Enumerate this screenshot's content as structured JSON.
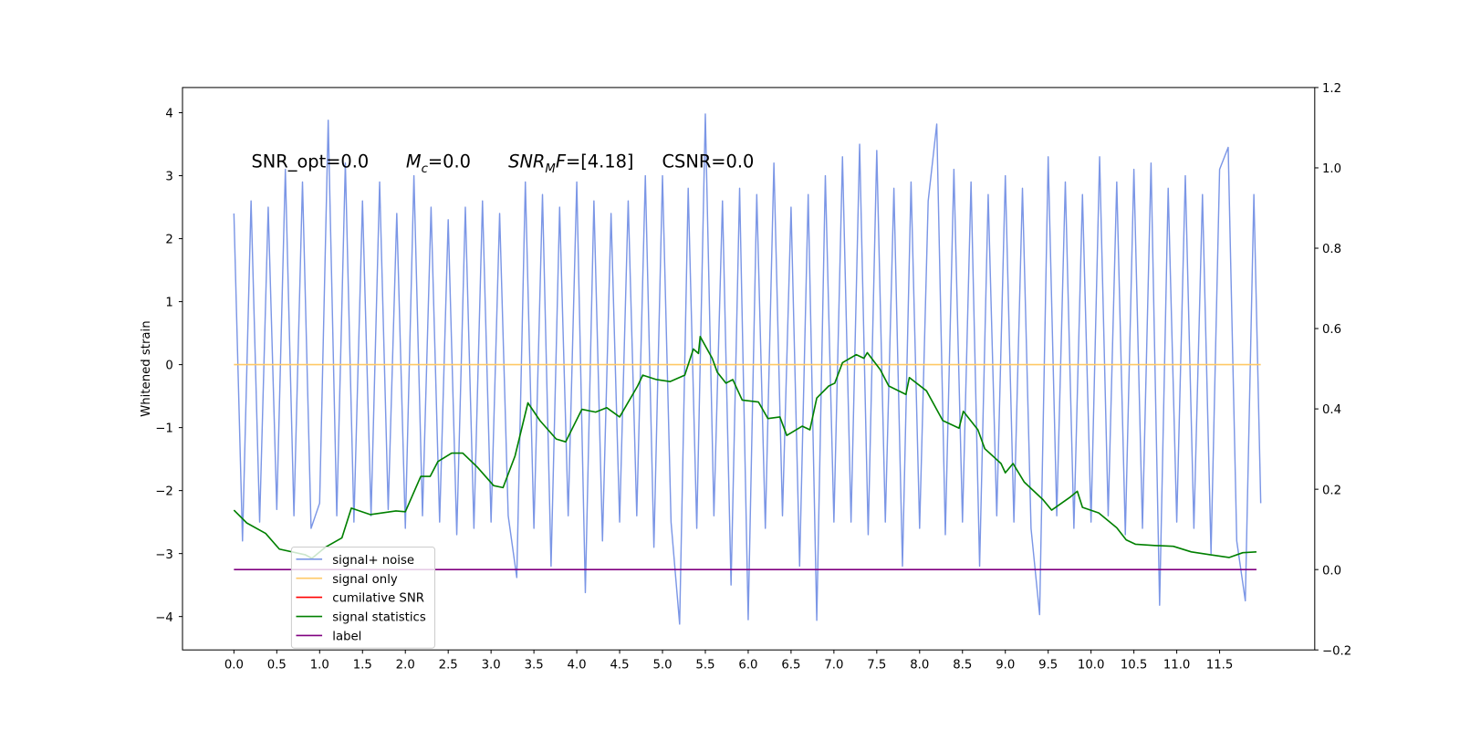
{
  "chart_data": {
    "type": "line",
    "y_label": "Whitened strain",
    "annotations": [
      [
        "SNR_opt=0.0"
      ],
      [
        "M",
        "c",
        "=0.0"
      ],
      [
        "SNR",
        "M",
        "F",
        "=[4.18]"
      ],
      [
        "CSNR=0.0"
      ]
    ],
    "xlim": [
      -0.6,
      12.61
    ],
    "ylim": [
      -4.53,
      4.4
    ],
    "y2lim": [
      -0.2,
      1.2
    ],
    "xticks": [
      {
        "value": 0,
        "label": "0.0"
      },
      {
        "value": 0.5,
        "label": "0.5"
      },
      {
        "value": 1,
        "label": "1.0"
      },
      {
        "value": 1.5,
        "label": "1.5"
      },
      {
        "value": 2,
        "label": "2.0"
      },
      {
        "value": 2.5,
        "label": "2.5"
      },
      {
        "value": 3,
        "label": "3.0"
      },
      {
        "value": 3.5,
        "label": "3.5"
      },
      {
        "value": 4,
        "label": "4.0"
      },
      {
        "value": 4.5,
        "label": "4.5"
      },
      {
        "value": 5,
        "label": "5.0"
      },
      {
        "value": 5.5,
        "label": "5.5"
      },
      {
        "value": 6,
        "label": "6.0"
      },
      {
        "value": 6.5,
        "label": "6.5"
      },
      {
        "value": 7,
        "label": "7.0"
      },
      {
        "value": 7.5,
        "label": "7.5"
      },
      {
        "value": 8,
        "label": "8.0"
      },
      {
        "value": 8.5,
        "label": "8.5"
      },
      {
        "value": 9,
        "label": "9.0"
      },
      {
        "value": 9.5,
        "label": "9.5"
      },
      {
        "value": 10,
        "label": "10.0"
      },
      {
        "value": 10.5,
        "label": "10.5"
      },
      {
        "value": 11,
        "label": "11.0"
      },
      {
        "value": 11.5,
        "label": "11.5"
      }
    ],
    "yticks": [
      {
        "value": -4,
        "label": "−4"
      },
      {
        "value": -3,
        "label": "−3"
      },
      {
        "value": -2,
        "label": "−2"
      },
      {
        "value": -1,
        "label": "−1"
      },
      0,
      1,
      2,
      3,
      4
    ],
    "y2ticks": [
      {
        "value": -0.2,
        "label": "−0.2"
      },
      {
        "value": 0,
        "label": "0.0"
      },
      {
        "value": 0.2,
        "label": "0.2"
      },
      {
        "value": 0.4,
        "label": "0.4"
      },
      {
        "value": 0.6,
        "label": "0.6"
      },
      {
        "value": 0.8,
        "label": "0.8"
      },
      {
        "value": 1,
        "label": "1.0"
      },
      {
        "value": 1.2,
        "label": "1.2"
      }
    ],
    "legend": "lower left",
    "series": [
      {
        "name": "signal+ noise",
        "color": "#7b96e6",
        "x": [
          0.0,
          0.1,
          0.2,
          0.3,
          0.4,
          0.5,
          0.6,
          0.7,
          0.8,
          0.9,
          1.0,
          1.1,
          1.2,
          1.3,
          1.4,
          1.5,
          1.6,
          1.7,
          1.8,
          1.9,
          2.0,
          2.1,
          2.2,
          2.3,
          2.4,
          2.5,
          2.6,
          2.7,
          2.8,
          2.9,
          3.0,
          3.1,
          3.2,
          3.3,
          3.4,
          3.5,
          3.6,
          3.7,
          3.8,
          3.9,
          4.0,
          4.1,
          4.2,
          4.3,
          4.4,
          4.5,
          4.6,
          4.7,
          4.8,
          4.9,
          5.0,
          5.1,
          5.2,
          5.3,
          5.4,
          5.5,
          5.6,
          5.7,
          5.8,
          5.9,
          6.0,
          6.1,
          6.2,
          6.3,
          6.4,
          6.5,
          6.6,
          6.7,
          6.8,
          6.9,
          7.0,
          7.1,
          7.2,
          7.3,
          7.4,
          7.5,
          7.6,
          7.7,
          7.8,
          7.9,
          8.0,
          8.1,
          8.2,
          8.3,
          8.4,
          8.5,
          8.6,
          8.7,
          8.8,
          8.9,
          9.0,
          9.1,
          9.2,
          9.3,
          9.4,
          9.5,
          9.6,
          9.7,
          9.8,
          9.9,
          10.0,
          10.1,
          10.2,
          10.3,
          10.4,
          10.5,
          10.6,
          10.7,
          10.8,
          10.9,
          11.0,
          11.1,
          11.2,
          11.3,
          11.4,
          11.5,
          11.6,
          11.7,
          11.8,
          11.9,
          11.98
        ],
        "values": [
          2.4,
          -2.8,
          2.6,
          -2.5,
          2.5,
          -2.3,
          3.1,
          -2.4,
          2.9,
          -2.6,
          -2.2,
          3.88,
          -2.4,
          3.2,
          -2.5,
          2.6,
          -2.4,
          2.9,
          -2.3,
          2.4,
          -2.6,
          3.0,
          -2.4,
          2.5,
          -2.5,
          2.3,
          -2.7,
          2.5,
          -2.6,
          2.6,
          -2.5,
          2.4,
          -2.4,
          -3.38,
          2.9,
          -2.6,
          2.7,
          -3.2,
          2.5,
          -2.4,
          2.9,
          -3.62,
          2.6,
          -2.8,
          2.4,
          -2.5,
          2.6,
          -2.4,
          3.0,
          -2.9,
          3.0,
          -2.5,
          -4.12,
          2.8,
          -2.6,
          3.98,
          -2.4,
          2.6,
          -3.5,
          2.8,
          -4.05,
          2.7,
          -2.6,
          3.2,
          -2.4,
          2.5,
          -3.2,
          2.7,
          -4.06,
          3.0,
          -2.5,
          3.3,
          -2.5,
          3.5,
          -2.7,
          3.4,
          -2.5,
          2.8,
          -3.2,
          2.9,
          -2.6,
          2.6,
          3.82,
          -2.7,
          3.1,
          -2.5,
          2.9,
          -3.2,
          2.7,
          -2.4,
          3.0,
          -2.5,
          2.8,
          -2.6,
          -3.97,
          3.3,
          -2.4,
          2.9,
          -2.6,
          2.7,
          -2.5,
          3.3,
          -2.4,
          2.9,
          -2.7,
          3.1,
          -2.6,
          3.2,
          -3.82,
          2.8,
          -2.5,
          3.0,
          -2.6,
          2.7,
          -3.0,
          3.1,
          3.45,
          -2.8,
          -3.75,
          2.7,
          -2.2
        ]
      },
      {
        "name": "signal only",
        "color": "#ffc966",
        "x": [
          0.0,
          11.98
        ],
        "values": [
          0,
          0
        ]
      },
      {
        "name": "cumilative SNR",
        "color": "#ff0000",
        "x": [],
        "values": []
      },
      {
        "name": "signal statistics",
        "color": "#008000",
        "axis": "y2",
        "x": [
          0.0,
          0.15,
          0.37,
          0.53,
          0.83,
          0.91,
          1.07,
          1.26,
          1.37,
          1.59,
          1.89,
          2.0,
          2.18,
          2.29,
          2.38,
          2.54,
          2.67,
          2.84,
          3.03,
          3.14,
          3.28,
          3.43,
          3.57,
          3.76,
          3.87,
          4.06,
          4.22,
          4.35,
          4.5,
          4.71,
          4.77,
          4.93,
          5.09,
          5.26,
          5.36,
          5.42,
          5.44,
          5.58,
          5.64,
          5.74,
          5.82,
          5.93,
          6.12,
          6.23,
          6.37,
          6.45,
          6.63,
          6.72,
          6.8,
          6.94,
          7.01,
          7.1,
          7.26,
          7.35,
          7.39,
          7.54,
          7.64,
          7.84,
          7.88,
          8.08,
          8.27,
          8.46,
          8.51,
          8.68,
          8.76,
          8.95,
          9.0,
          9.09,
          9.22,
          9.44,
          9.54,
          9.76,
          9.84,
          9.9,
          10.09,
          10.3,
          10.41,
          10.52,
          10.74,
          10.96,
          11.17,
          11.39,
          11.61,
          11.77,
          11.93
        ],
        "values": [
          0.148,
          0.116,
          0.09,
          0.051,
          0.037,
          0.028,
          0.056,
          0.079,
          0.153,
          0.137,
          0.146,
          0.144,
          0.232,
          0.232,
          0.269,
          0.29,
          0.29,
          0.255,
          0.209,
          0.204,
          0.283,
          0.415,
          0.371,
          0.325,
          0.318,
          0.399,
          0.392,
          0.403,
          0.38,
          0.457,
          0.484,
          0.473,
          0.468,
          0.484,
          0.549,
          0.538,
          0.58,
          0.526,
          0.491,
          0.464,
          0.473,
          0.422,
          0.417,
          0.376,
          0.38,
          0.334,
          0.357,
          0.348,
          0.427,
          0.457,
          0.464,
          0.515,
          0.535,
          0.526,
          0.54,
          0.498,
          0.457,
          0.436,
          0.478,
          0.445,
          0.371,
          0.352,
          0.394,
          0.348,
          0.301,
          0.264,
          0.241,
          0.264,
          0.218,
          0.174,
          0.148,
          0.181,
          0.195,
          0.155,
          0.141,
          0.104,
          0.074,
          0.063,
          0.06,
          0.058,
          0.044,
          0.037,
          0.03,
          0.042,
          0.044
        ]
      },
      {
        "name": "label",
        "color": "#800080",
        "axis": "y2",
        "x": [
          0.0,
          11.93
        ],
        "values": [
          0,
          0
        ]
      }
    ]
  }
}
